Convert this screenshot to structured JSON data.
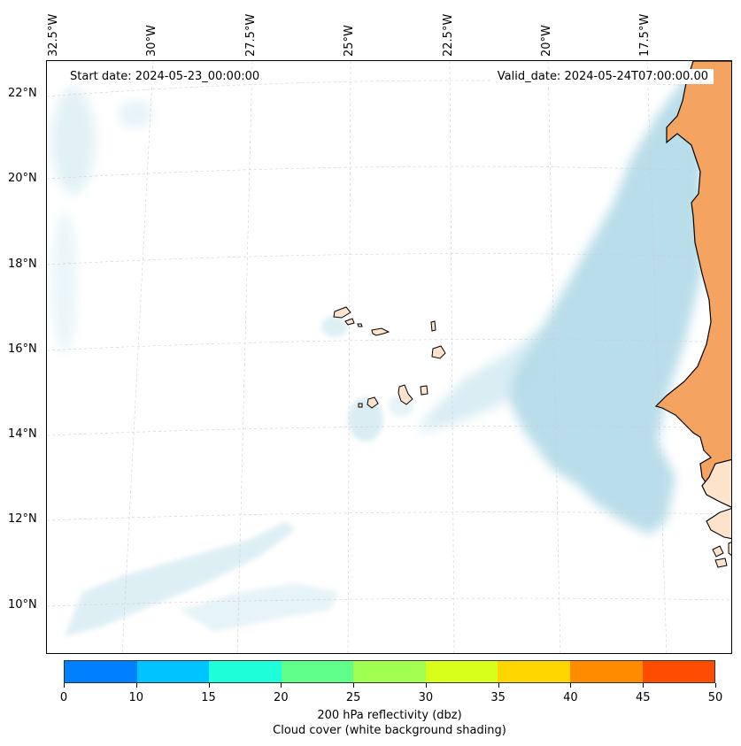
{
  "header": {
    "start_date": "Start date: 2024-05-23_00:00:00",
    "valid_date": "Valid_date: 2024-05-24T07:00:00.00"
  },
  "longitude_labels": [
    "32.5°W",
    "30°W",
    "27.5°W",
    "25°W",
    "22.5°W",
    "20°W",
    "17.5°W"
  ],
  "latitude_labels": [
    "22°N",
    "20°N",
    "18°N",
    "16°N",
    "14°N",
    "12°N",
    "10°N"
  ],
  "colorbar": {
    "ticks": [
      "0",
      "10",
      "15",
      "20",
      "25",
      "30",
      "35",
      "40",
      "45",
      "50"
    ],
    "colors": [
      "#0080ff",
      "#00c4ff",
      "#1effd9",
      "#5fff8a",
      "#a0ff50",
      "#d8ff1a",
      "#ffd700",
      "#ff8c00",
      "#ff4d00"
    ],
    "label_line1": "200 hPa reflectivity (dbz)",
    "label_line2": "Cloud cover (white background shading)"
  },
  "colors": {
    "land": "#f4a460",
    "cloud": "#add8e6",
    "grid": "#cccccc"
  }
}
